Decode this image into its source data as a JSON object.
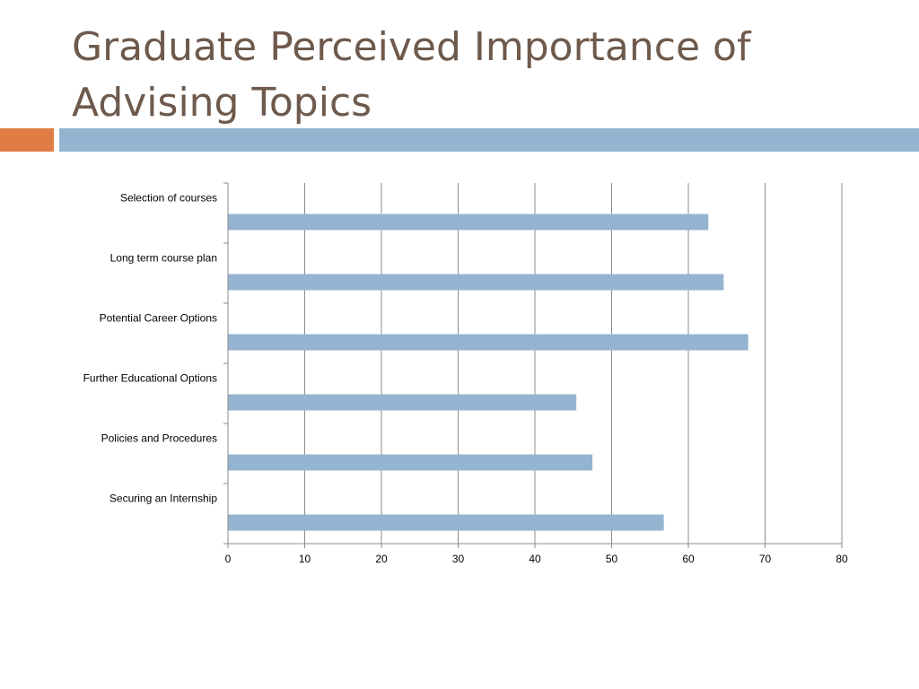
{
  "slide": {
    "title": "Graduate Perceived Importance of Advising Topics",
    "accent_colors": {
      "orange": "#e07d45",
      "blue": "#95b4d1"
    }
  },
  "chart_data": {
    "type": "bar",
    "orientation": "horizontal",
    "categories": [
      "Securing an Internship",
      "Policies and Procedures",
      "Further Educational Options",
      "Potential Career Options",
      "Long term course plan",
      "Selection of courses"
    ],
    "values": [
      56.8,
      47.5,
      45.4,
      67.8,
      64.6,
      62.6
    ],
    "xlim": [
      0,
      80
    ],
    "xticks": [
      0,
      10,
      20,
      30,
      40,
      50,
      60,
      70,
      80
    ],
    "grid": true,
    "legend": "none",
    "bar_color": "#95b4d1"
  }
}
